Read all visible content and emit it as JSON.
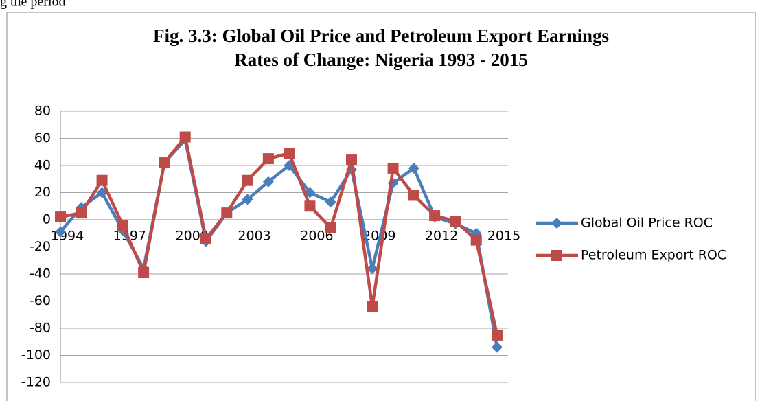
{
  "header_text": "g the period",
  "chart_data": {
    "type": "line",
    "title": "Fig. 3.3: Global Oil Price and Petroleum Export Earnings",
    "subtitle": "Rates of Change: Nigeria 1993 - 2015",
    "categories": [
      "1994",
      null,
      null,
      "1997",
      null,
      null,
      "2000",
      null,
      null,
      "2003",
      null,
      null,
      "2006",
      null,
      null,
      "2009",
      null,
      null,
      "2012",
      null,
      null,
      "2015"
    ],
    "series": [
      {
        "name": "Global Oil Price ROC",
        "color": "#4a7ebb",
        "marker": "diamond",
        "values": [
          -9,
          9,
          20,
          -8,
          -36,
          42,
          59,
          -16,
          5,
          15,
          28,
          40,
          20,
          13,
          37,
          -36,
          27,
          38,
          2,
          -3,
          -10,
          -94
        ]
      },
      {
        "name": "Petroleum Export ROC",
        "color": "#be4b48",
        "marker": "square",
        "values": [
          2,
          5,
          29,
          -4,
          -39,
          42,
          61,
          -14,
          5,
          29,
          45,
          49,
          10,
          -6,
          44,
          -64,
          38,
          18,
          3,
          -1,
          -15,
          -85
        ]
      }
    ],
    "ylim": [
      -120,
      80
    ],
    "yticks": [
      -120,
      -100,
      -80,
      -60,
      -40,
      -20,
      0,
      20,
      40,
      60,
      80
    ],
    "grid": true,
    "legend": "right"
  }
}
